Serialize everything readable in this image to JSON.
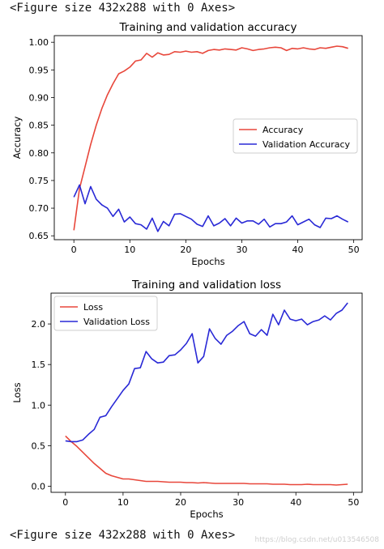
{
  "notebook": {
    "figure_text_top": "<Figure size 432x288 with 0 Axes>",
    "figure_text_bottom": "<Figure size 432x288 with 0 Axes>",
    "watermark": "https://blog.csdn.net/u013546508"
  },
  "colors": {
    "train": "#e8473b",
    "validation": "#2929d6"
  },
  "chart_data": [
    {
      "type": "line",
      "title": "Training and validation accuracy",
      "xlabel": "Epochs",
      "ylabel": "Accuracy",
      "xlim": [
        -3.5,
        51.5
      ],
      "ylim": [
        0.643,
        1.012
      ],
      "xticks": [
        0,
        10,
        20,
        30,
        40,
        50
      ],
      "xtick_labels": [
        "0",
        "10",
        "20",
        "30",
        "40",
        "50"
      ],
      "yticks": [
        0.65,
        0.7,
        0.75,
        0.8,
        0.85,
        0.9,
        0.95,
        1.0
      ],
      "ytick_labels": [
        "0.65",
        "0.70",
        "0.75",
        "0.80",
        "0.85",
        "0.90",
        "0.95",
        "1.00"
      ],
      "legend_position": "center-right",
      "x": [
        0,
        1,
        2,
        3,
        4,
        5,
        6,
        7,
        8,
        9,
        10,
        11,
        12,
        13,
        14,
        15,
        16,
        17,
        18,
        19,
        20,
        21,
        22,
        23,
        24,
        25,
        26,
        27,
        28,
        29,
        30,
        31,
        32,
        33,
        34,
        35,
        36,
        37,
        38,
        39,
        40,
        41,
        42,
        43,
        44,
        45,
        46,
        47,
        48,
        49
      ],
      "series": [
        {
          "name": "Accuracy",
          "color": "#e8473b",
          "values": [
            0.66,
            0.735,
            0.775,
            0.815,
            0.85,
            0.88,
            0.905,
            0.925,
            0.943,
            0.948,
            0.955,
            0.966,
            0.968,
            0.98,
            0.973,
            0.981,
            0.977,
            0.978,
            0.983,
            0.982,
            0.984,
            0.982,
            0.983,
            0.98,
            0.985,
            0.987,
            0.986,
            0.988,
            0.987,
            0.986,
            0.99,
            0.988,
            0.985,
            0.987,
            0.988,
            0.99,
            0.991,
            0.99,
            0.985,
            0.989,
            0.988,
            0.99,
            0.988,
            0.987,
            0.99,
            0.989,
            0.991,
            0.993,
            0.992,
            0.989
          ]
        },
        {
          "name": "Validation Accuracy",
          "color": "#2929d6",
          "values": [
            0.72,
            0.742,
            0.708,
            0.739,
            0.716,
            0.706,
            0.7,
            0.685,
            0.698,
            0.675,
            0.684,
            0.672,
            0.67,
            0.662,
            0.682,
            0.658,
            0.676,
            0.668,
            0.689,
            0.69,
            0.685,
            0.68,
            0.671,
            0.667,
            0.686,
            0.668,
            0.673,
            0.681,
            0.668,
            0.682,
            0.673,
            0.677,
            0.677,
            0.671,
            0.68,
            0.666,
            0.672,
            0.672,
            0.675,
            0.686,
            0.67,
            0.675,
            0.68,
            0.67,
            0.665,
            0.682,
            0.681,
            0.686,
            0.68,
            0.675
          ]
        }
      ]
    },
    {
      "type": "line",
      "title": "Training and validation loss",
      "xlabel": "Epochs",
      "ylabel": "Loss",
      "xlim": [
        -2.5,
        51.5
      ],
      "ylim": [
        -0.075,
        2.38
      ],
      "xticks": [
        0,
        10,
        20,
        30,
        40,
        50
      ],
      "xtick_labels": [
        "0",
        "10",
        "20",
        "30",
        "40",
        "50"
      ],
      "yticks": [
        0.0,
        0.5,
        1.0,
        1.5,
        2.0
      ],
      "ytick_labels": [
        "0.0",
        "0.5",
        "1.0",
        "1.5",
        "2.0"
      ],
      "legend_position": "top-left",
      "x": [
        0,
        1,
        2,
        3,
        4,
        5,
        6,
        7,
        8,
        9,
        10,
        11,
        12,
        13,
        14,
        15,
        16,
        17,
        18,
        19,
        20,
        21,
        22,
        23,
        24,
        25,
        26,
        27,
        28,
        29,
        30,
        31,
        32,
        33,
        34,
        35,
        36,
        37,
        38,
        39,
        40,
        41,
        42,
        43,
        44,
        45,
        46,
        47,
        48,
        49
      ],
      "series": [
        {
          "name": "Loss",
          "color": "#e8473b",
          "values": [
            0.62,
            0.55,
            0.49,
            0.42,
            0.35,
            0.28,
            0.22,
            0.16,
            0.13,
            0.11,
            0.09,
            0.09,
            0.08,
            0.07,
            0.06,
            0.06,
            0.06,
            0.055,
            0.05,
            0.05,
            0.05,
            0.045,
            0.045,
            0.04,
            0.045,
            0.04,
            0.035,
            0.035,
            0.035,
            0.035,
            0.035,
            0.035,
            0.03,
            0.03,
            0.03,
            0.03,
            0.025,
            0.025,
            0.025,
            0.02,
            0.02,
            0.02,
            0.025,
            0.02,
            0.02,
            0.02,
            0.02,
            0.015,
            0.02,
            0.025
          ]
        },
        {
          "name": "Validation Loss",
          "color": "#2929d6",
          "values": [
            0.56,
            0.55,
            0.55,
            0.57,
            0.64,
            0.7,
            0.85,
            0.87,
            0.98,
            1.08,
            1.18,
            1.26,
            1.45,
            1.46,
            1.66,
            1.57,
            1.52,
            1.53,
            1.61,
            1.62,
            1.68,
            1.76,
            1.88,
            1.52,
            1.6,
            1.94,
            1.82,
            1.75,
            1.86,
            1.91,
            1.98,
            2.03,
            1.88,
            1.85,
            1.93,
            1.86,
            2.12,
            1.99,
            2.17,
            2.06,
            2.04,
            2.06,
            1.99,
            2.03,
            2.05,
            2.1,
            2.05,
            2.13,
            2.17,
            2.26
          ]
        }
      ]
    }
  ]
}
